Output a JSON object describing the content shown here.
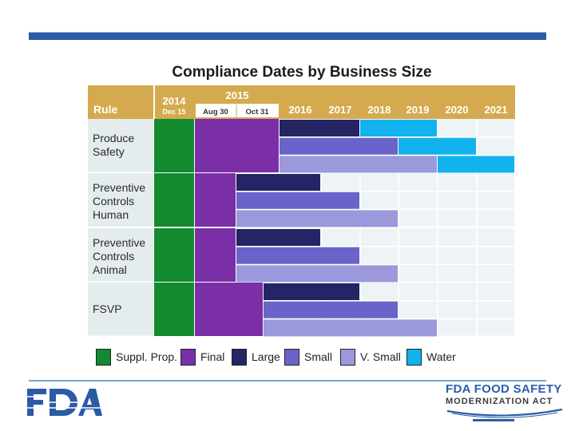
{
  "title": "Compliance Dates by Business Size",
  "header": {
    "rule_label": "Rule",
    "year_2014": "2014",
    "date_2014": "Dec 15",
    "year_2015": "2015",
    "date_2015a": "Aug 30",
    "date_2015b": "Oct 31",
    "years": [
      "2016",
      "2017",
      "2018",
      "2019",
      "2020",
      "2021"
    ]
  },
  "rows": [
    {
      "label_lines": [
        "Produce",
        "Safety"
      ]
    },
    {
      "label_lines": [
        "Preventive",
        "Controls",
        "Human"
      ]
    },
    {
      "label_lines": [
        "Preventive",
        "Controls",
        "Animal"
      ]
    },
    {
      "label_lines": [
        "FSVP"
      ]
    }
  ],
  "legend": [
    {
      "label": "Suppl. Prop.",
      "color": "#138a2e"
    },
    {
      "label": "Final",
      "color": "#7a2fa6"
    },
    {
      "label": "Large",
      "color": "#252464"
    },
    {
      "label": "Small",
      "color": "#6a63c9"
    },
    {
      "label": "V. Small",
      "color": "#9c98dc"
    },
    {
      "label": "Water",
      "color": "#11b2ee"
    }
  ],
  "colors": {
    "header": "#d5aa4e",
    "row_label": "#e4ecee",
    "cell": "#eef4f5",
    "accent": "#2b5aa6"
  },
  "chart_data": {
    "type": "gantt",
    "columns": [
      "2014 Dec 15",
      "2015 Aug 30",
      "2015 Oct 31",
      "2016",
      "2017",
      "2018",
      "2019",
      "2020",
      "2021"
    ],
    "bars": [
      {
        "rule": "Produce Safety",
        "category": "Suppl. Prop.",
        "start": "2014 Dec 15",
        "end": "2015 Aug 30"
      },
      {
        "rule": "Produce Safety",
        "category": "Final",
        "start": "2015 Aug 30",
        "end": "2016"
      },
      {
        "rule": "Produce Safety",
        "category": "Large",
        "start": "2016",
        "end": "2018"
      },
      {
        "rule": "Produce Safety",
        "category": "Water",
        "start": "2018",
        "end": "2020"
      },
      {
        "rule": "Produce Safety",
        "category": "Small",
        "start": "2016",
        "end": "2019"
      },
      {
        "rule": "Produce Safety",
        "category": "Water",
        "start": "2019",
        "end": "2021"
      },
      {
        "rule": "Produce Safety",
        "category": "V. Small",
        "start": "2016",
        "end": "2020"
      },
      {
        "rule": "Produce Safety",
        "category": "Water",
        "start": "2020",
        "end": "2022"
      },
      {
        "rule": "Preventive Controls Human",
        "category": "Suppl. Prop.",
        "start": "2014 Dec 15",
        "end": "2015 Aug 30"
      },
      {
        "rule": "Preventive Controls Human",
        "category": "Final",
        "start": "2015 Aug 30",
        "end": "2015 Oct 31"
      },
      {
        "rule": "Preventive Controls Human",
        "category": "Large",
        "start": "2015 Oct 31",
        "end": "2017"
      },
      {
        "rule": "Preventive Controls Human",
        "category": "Small",
        "start": "2015 Oct 31",
        "end": "2018"
      },
      {
        "rule": "Preventive Controls Human",
        "category": "V. Small",
        "start": "2015 Oct 31",
        "end": "2019"
      },
      {
        "rule": "Preventive Controls Animal",
        "category": "Suppl. Prop.",
        "start": "2014 Dec 15",
        "end": "2015 Aug 30"
      },
      {
        "rule": "Preventive Controls Animal",
        "category": "Final",
        "start": "2015 Aug 30",
        "end": "2015 Oct 31"
      },
      {
        "rule": "Preventive Controls Animal",
        "category": "Large",
        "start": "2015 Oct 31",
        "end": "2017"
      },
      {
        "rule": "Preventive Controls Animal",
        "category": "Small",
        "start": "2015 Oct 31",
        "end": "2018"
      },
      {
        "rule": "Preventive Controls Animal",
        "category": "V. Small",
        "start": "2015 Oct 31",
        "end": "2019"
      },
      {
        "rule": "FSVP",
        "category": "Suppl. Prop.",
        "start": "2014 Dec 15",
        "end": "2015 Aug 30"
      },
      {
        "rule": "FSVP",
        "category": "Final",
        "start": "2015 Aug 30",
        "end": "2015 Oct 31+"
      },
      {
        "rule": "FSVP",
        "category": "Large",
        "start": "2015 Oct 31+",
        "end": "2018"
      },
      {
        "rule": "FSVP",
        "category": "Small",
        "start": "2015 Oct 31+",
        "end": "2019"
      },
      {
        "rule": "FSVP",
        "category": "V. Small",
        "start": "2015 Oct 31+",
        "end": "2020"
      }
    ]
  },
  "footer": {
    "fda_logo_text": "FDA",
    "fsma_line1": "FDA FOOD SAFETY",
    "fsma_line2": "MODERNIZATION ACT"
  }
}
